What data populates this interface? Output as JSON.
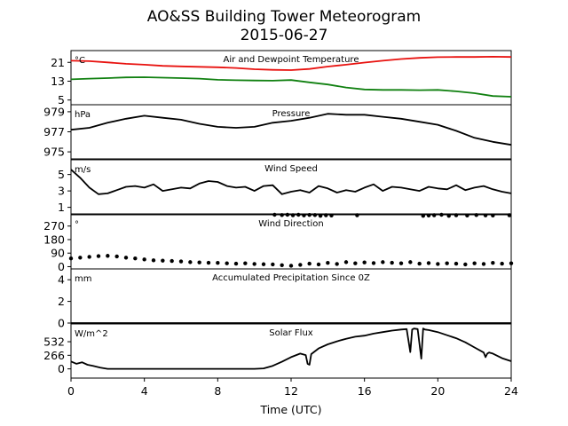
{
  "figure": {
    "title": "AO&SS Building Tower Meteorogram",
    "subtitle": "2015-06-27"
  },
  "chart_data": [
    {
      "type": "line",
      "title": "Air and Dewpoint Temperature",
      "unit": "°C",
      "xlim": [
        0,
        24
      ],
      "ylim": [
        3,
        26
      ],
      "yticks": [
        "21",
        "13",
        "5"
      ],
      "ytick_values": [
        21,
        13,
        5
      ],
      "series": [
        {
          "color": "#e8120f",
          "x": [
            0,
            1,
            2,
            3,
            4,
            5,
            6,
            7,
            8,
            9,
            10,
            11,
            12,
            13,
            14,
            15,
            16,
            17,
            18,
            19,
            20,
            21,
            22,
            23,
            24
          ],
          "y": [
            21.7,
            21.5,
            21.0,
            20.4,
            20.0,
            19.5,
            19.3,
            19.1,
            18.9,
            18.6,
            18.1,
            17.8,
            17.7,
            18.2,
            19.2,
            20.0,
            20.9,
            21.7,
            22.4,
            22.9,
            23.2,
            23.3,
            23.3,
            23.4,
            23.3
          ]
        },
        {
          "color": "#108010",
          "x": [
            0,
            1,
            2,
            3,
            4,
            5,
            6,
            7,
            8,
            9,
            10,
            11,
            12,
            13,
            14,
            15,
            16,
            17,
            18,
            19,
            20,
            21,
            22,
            23,
            24
          ],
          "y": [
            13.8,
            14.1,
            14.3,
            14.6,
            14.7,
            14.5,
            14.3,
            14.1,
            13.6,
            13.4,
            13.3,
            13.2,
            13.5,
            12.5,
            11.6,
            10.3,
            9.5,
            9.3,
            9.3,
            9.2,
            9.3,
            8.7,
            7.9,
            6.7,
            6.4
          ]
        }
      ]
    },
    {
      "type": "line",
      "title": "Pressure",
      "unit": "hPa",
      "xlim": [
        0,
        24
      ],
      "ylim": [
        974.3,
        979.7
      ],
      "yticks": [
        "979",
        "977",
        "975"
      ],
      "ytick_values": [
        979,
        977,
        975
      ],
      "series": [
        {
          "color": "#000000",
          "x": [
            0,
            1,
            2,
            3,
            4,
            5,
            6,
            7,
            8,
            9,
            10,
            11,
            12,
            13,
            14,
            15,
            16,
            17,
            18,
            19,
            20,
            21,
            22,
            23,
            24
          ],
          "y": [
            977.2,
            977.4,
            977.9,
            978.3,
            978.6,
            978.4,
            978.2,
            977.8,
            977.5,
            977.4,
            977.5,
            977.9,
            978.1,
            978.4,
            978.8,
            978.7,
            978.7,
            978.5,
            978.3,
            978.0,
            977.7,
            977.1,
            976.4,
            976.0,
            975.7
          ]
        }
      ]
    },
    {
      "type": "line",
      "title": "Wind Speed",
      "unit": "m/s",
      "xlim": [
        0,
        24
      ],
      "ylim": [
        0.2,
        6.8
      ],
      "yticks": [
        "5",
        "3",
        "1"
      ],
      "ytick_values": [
        5,
        3,
        1
      ],
      "series": [
        {
          "color": "#000000",
          "x": [
            0,
            0.5,
            1,
            1.5,
            2,
            2.5,
            3,
            3.5,
            4,
            4.5,
            5,
            5.5,
            6,
            6.5,
            7,
            7.5,
            8,
            8.5,
            9,
            9.5,
            10,
            10.5,
            11,
            11.5,
            12,
            12.5,
            13,
            13.5,
            14,
            14.5,
            15,
            15.5,
            16,
            16.5,
            17,
            17.5,
            18,
            18.5,
            19,
            19.5,
            20,
            20.5,
            21,
            21.5,
            22,
            22.5,
            23,
            23.5,
            24
          ],
          "y": [
            5.6,
            4.6,
            3.4,
            2.6,
            2.7,
            3.1,
            3.5,
            3.6,
            3.4,
            3.8,
            3.0,
            3.2,
            3.4,
            3.3,
            3.9,
            4.2,
            4.1,
            3.6,
            3.4,
            3.5,
            3.0,
            3.6,
            3.7,
            2.6,
            2.9,
            3.1,
            2.8,
            3.6,
            3.3,
            2.8,
            3.1,
            2.9,
            3.4,
            3.8,
            3.0,
            3.5,
            3.4,
            3.2,
            3.0,
            3.5,
            3.3,
            3.2,
            3.7,
            3.1,
            3.4,
            3.6,
            3.2,
            2.9,
            2.7
          ]
        }
      ]
    },
    {
      "type": "scatter",
      "title": "Wind Direction",
      "unit": "°",
      "xlim": [
        0,
        24
      ],
      "ylim": [
        -15,
        345
      ],
      "yticks": [
        "270",
        "180",
        "90",
        "0"
      ],
      "ytick_values": [
        270,
        180,
        90,
        0
      ],
      "series": [
        {
          "color": "#000000",
          "x": [
            0,
            0.5,
            1,
            1.5,
            2,
            2.5,
            3,
            3.5,
            4,
            4.5,
            5,
            5.5,
            6,
            6.5,
            7,
            7.5,
            8,
            8.5,
            9,
            9.5,
            10,
            10.5,
            11,
            11.5,
            12,
            12.5,
            13,
            13.5,
            14,
            14.5,
            15,
            15.5,
            16,
            16.5,
            17,
            17.5,
            18,
            18.5,
            19,
            19.5,
            20,
            20.5,
            21,
            21.5,
            22,
            22.5,
            23,
            23.5,
            24
          ],
          "y": [
            55,
            60,
            65,
            70,
            72,
            68,
            60,
            55,
            48,
            42,
            40,
            38,
            35,
            30,
            28,
            26,
            25,
            22,
            20,
            22,
            18,
            16,
            15,
            10,
            6,
            12,
            20,
            15,
            25,
            18,
            30,
            22,
            28,
            24,
            30,
            26,
            22,
            30,
            20,
            24,
            18,
            22,
            20,
            15,
            22,
            18,
            25,
            20,
            22
          ]
        },
        {
          "color": "#000000",
          "x": [
            11.1,
            11.5,
            11.8,
            12.1,
            12.4,
            12.7,
            13.0,
            13.3,
            13.6,
            13.9,
            14.2,
            15.6,
            19.2,
            19.5,
            19.8,
            20.2,
            20.6,
            21.0,
            21.6,
            22.1,
            22.6,
            23.0,
            23.9
          ],
          "y": [
            345,
            343,
            345,
            342,
            345,
            341,
            344,
            343,
            338,
            342,
            340,
            342,
            338,
            340,
            342,
            345,
            338,
            342,
            340,
            343,
            341,
            340,
            342
          ]
        }
      ]
    },
    {
      "type": "line",
      "title": "Accumulated Precipitation Since 0Z",
      "unit": "mm",
      "xlim": [
        0,
        24
      ],
      "ylim": [
        0,
        5
      ],
      "yticks": [
        "4",
        "2",
        "0"
      ],
      "ytick_values": [
        4,
        2,
        0
      ],
      "series": [
        {
          "color": "#000000",
          "x": [
            0,
            24
          ],
          "y": [
            0,
            0
          ]
        }
      ]
    },
    {
      "type": "line",
      "title": "Solar Flux",
      "unit": "W/m^2",
      "xlim": [
        0,
        24
      ],
      "ylim": [
        -180,
        880
      ],
      "yticks": [
        "532",
        "266",
        "0"
      ],
      "ytick_values": [
        532,
        266,
        0
      ],
      "series": [
        {
          "color": "#000000",
          "x": [
            0,
            0.3,
            0.6,
            0.9,
            1.2,
            1.6,
            2.0,
            3,
            4,
            5,
            6,
            7,
            8,
            9,
            10,
            10.5,
            11,
            11.5,
            12,
            12.5,
            12.8,
            12.9,
            13.0,
            13.1,
            13.5,
            14,
            14.5,
            15,
            15.5,
            16,
            16.5,
            17,
            17.5,
            18,
            18.3,
            18.5,
            18.6,
            18.7,
            18.9,
            19.1,
            19.2,
            19.3,
            19.5,
            20,
            20.5,
            21,
            21.5,
            22,
            22.5,
            22.6,
            22.7,
            22.8,
            23,
            23.5,
            24
          ],
          "y": [
            145,
            100,
            130,
            80,
            60,
            25,
            0,
            0,
            0,
            0,
            0,
            0,
            0,
            0,
            0,
            10,
            60,
            140,
            230,
            300,
            270,
            100,
            80,
            290,
            400,
            480,
            540,
            590,
            630,
            650,
            690,
            720,
            750,
            770,
            780,
            330,
            770,
            790,
            780,
            200,
            790,
            770,
            760,
            720,
            660,
            600,
            520,
            420,
            320,
            230,
            300,
            320,
            300,
            210,
            150
          ]
        }
      ]
    }
  ],
  "xaxis": {
    "label": "Time (UTC)",
    "ticks": [
      "0",
      "4",
      "8",
      "12",
      "16",
      "20",
      "24"
    ],
    "tick_values": [
      0,
      4,
      8,
      12,
      16,
      20,
      24
    ]
  }
}
